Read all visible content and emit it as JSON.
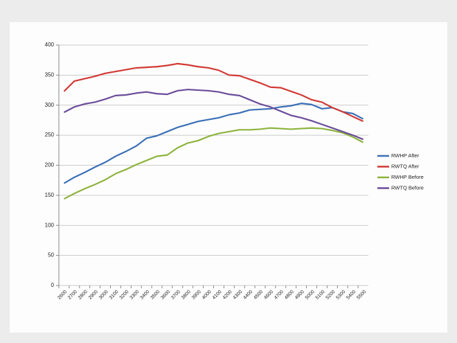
{
  "chart_data": {
    "type": "line",
    "categories": [
      "2600",
      "2700",
      "2800",
      "2900",
      "3000",
      "3100",
      "3200",
      "3300",
      "3400",
      "3500",
      "3600",
      "3700",
      "3800",
      "3900",
      "4000",
      "4100",
      "4200",
      "4300",
      "4400",
      "4500",
      "4600",
      "4700",
      "4800",
      "4900",
      "5000",
      "5100",
      "5200",
      "5300",
      "5400",
      "5500"
    ],
    "series": [
      {
        "name": "RWHP After",
        "color": "#3b6fb6",
        "values": [
          170,
          180,
          188,
          197,
          205,
          215,
          223,
          232,
          245,
          249,
          256,
          263,
          268,
          273,
          276,
          279,
          284,
          287,
          292,
          293,
          294,
          297,
          299,
          303,
          301,
          294,
          296,
          289,
          286,
          277
        ]
      },
      {
        "name": "RWTQ After",
        "color": "#d13a35",
        "values": [
          323,
          340,
          344,
          348,
          353,
          356,
          359,
          362,
          363,
          364,
          366,
          369,
          367,
          364,
          362,
          358,
          350,
          349,
          343,
          337,
          330,
          329,
          323,
          317,
          309,
          305,
          296,
          289,
          281,
          273
        ]
      },
      {
        "name": "RWHP Before",
        "color": "#8db33d",
        "values": [
          144,
          153,
          161,
          168,
          176,
          186,
          193,
          201,
          208,
          215,
          217,
          229,
          237,
          241,
          248,
          253,
          256,
          259,
          259,
          260,
          262,
          261,
          260,
          261,
          262,
          261,
          258,
          254,
          247,
          238
        ]
      },
      {
        "name": "RWTQ Before",
        "color": "#6a4d9a",
        "values": [
          288,
          297,
          302,
          305,
          310,
          316,
          317,
          320,
          322,
          319,
          318,
          324,
          326,
          325,
          324,
          322,
          318,
          316,
          309,
          302,
          297,
          290,
          283,
          279,
          274,
          268,
          262,
          256,
          250,
          243
        ]
      }
    ],
    "ylim": [
      0,
      400
    ],
    "yticks": [
      0,
      50,
      100,
      150,
      200,
      250,
      300,
      350,
      400
    ],
    "grid": true,
    "legend": "right"
  }
}
